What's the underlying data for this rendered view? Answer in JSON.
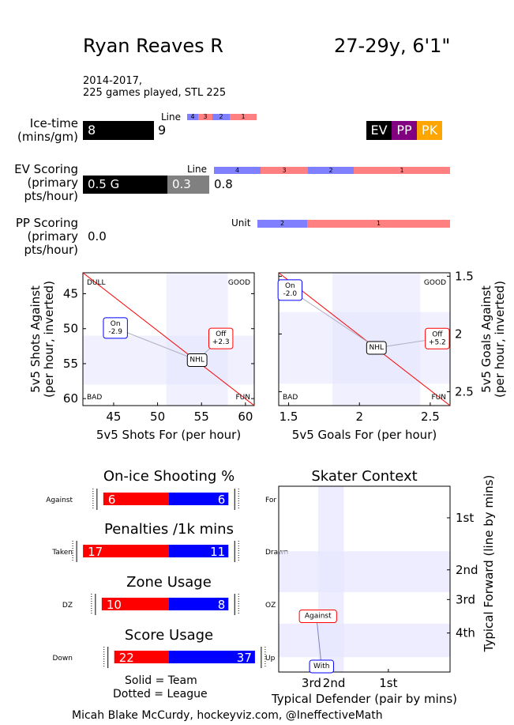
{
  "header": {
    "name": "Ryan Reaves R",
    "age_height": "27-29y, 6'1\"",
    "seasons": "2014-2017,",
    "games": "225 games played, STL 225"
  },
  "colors": {
    "line1": "#ff8080",
    "line2": "#8080ff",
    "line3": "#ff8080",
    "line4": "#8080ff",
    "ev": "#000000",
    "pp": "#800080",
    "pk": "#ffa500",
    "red": "#ff0000",
    "blue": "#0000ff",
    "shade": "#e6e6ff"
  },
  "icetime": {
    "label": [
      "Ice-time",
      "(mins/gm)"
    ],
    "value_bar": "8",
    "value_after": "9",
    "line_title": "Line",
    "line_segments": [
      {
        "label": "4",
        "frac": 0.15,
        "color": "#8080ff"
      },
      {
        "label": "3",
        "frac": 0.35,
        "color": "#ff8080"
      },
      {
        "label": "2",
        "frac": 0.5,
        "color": "#8080ff"
      },
      {
        "label": "1",
        "frac": 0.0,
        "color": "#ff8080"
      }
    ],
    "badges": [
      "EV",
      "PP",
      "PK"
    ]
  },
  "ev_scoring": {
    "label": [
      "EV Scoring",
      "(primary",
      "pts/hour)"
    ],
    "goals_text": "0.5 G",
    "assists_text": "0.3",
    "total_text": "0.8",
    "line_title": "Line",
    "line_segments": [
      {
        "label": "4",
        "frac": 0.197
      },
      {
        "label": "3",
        "frac": 0.397
      },
      {
        "label": "2",
        "frac": 0.592
      },
      {
        "label": "1",
        "frac": 1.0
      }
    ]
  },
  "pp_scoring": {
    "label": [
      "PP Scoring",
      "(primary",
      "pts/hour)"
    ],
    "value": "0.0",
    "unit_title": "Unit",
    "unit_segments": [
      {
        "label": "2",
        "frac": 0.257
      },
      {
        "label": "1",
        "frac": 1.0
      }
    ]
  },
  "chart_data": [
    {
      "type": "scatter",
      "title": "",
      "xlabel": "5v5 Shots For (per hour)",
      "ylabel": "5v5 Shots Against\n(per hour, inverted)",
      "xlim": [
        41.5,
        61
      ],
      "ylim": [
        61,
        42
      ],
      "y_inverted": true,
      "xticks": [
        45,
        50,
        55,
        60
      ],
      "yticks": [
        45,
        50,
        55,
        60
      ],
      "corners": {
        "tl": "DULL",
        "tr": "GOOD",
        "bl": "BAD",
        "br": "FUN"
      },
      "shade_x": [
        51,
        58
      ],
      "shade_y": [
        51,
        58
      ],
      "points": [
        {
          "label": "On\n-2.9",
          "x": 45.2,
          "y": 49.9,
          "color": "blue"
        },
        {
          "label": "Off\n+2.3",
          "x": 57.2,
          "y": 51.4,
          "color": "red"
        },
        {
          "label": "NHL",
          "x": 54.5,
          "y": 54.5,
          "color": "black"
        }
      ]
    },
    {
      "type": "scatter",
      "title": "",
      "xlabel": "5v5 Goals For (per hour)",
      "ylabel": "5v5 Goals Against\n(per hour, inverted)",
      "xlim": [
        1.43,
        2.64
      ],
      "ylim": [
        2.62,
        1.47
      ],
      "y_inverted": true,
      "xticks": [
        1.5,
        2.0,
        2.5
      ],
      "yticks": [
        1.5,
        2.0,
        2.5
      ],
      "corners": {
        "tl": "DULL",
        "tr": "GOOD",
        "bl": "BAD",
        "br": "FUN"
      },
      "shade_x": [
        1.81,
        2.43
      ],
      "shade_y": [
        1.81,
        2.43
      ],
      "points": [
        {
          "label": "On\n-2.0",
          "x": 1.51,
          "y": 1.62,
          "color": "blue"
        },
        {
          "label": "Off\n+5.2",
          "x": 2.55,
          "y": 2.04,
          "color": "red"
        },
        {
          "label": "NHL",
          "x": 2.12,
          "y": 2.12,
          "color": "black"
        }
      ]
    },
    {
      "type": "bar",
      "title": "On-ice Shooting %",
      "left_label": "Against",
      "right_label": "For",
      "left_value": 6,
      "right_value": 6,
      "left_len": 0.42,
      "right_len": 0.38
    },
    {
      "type": "bar",
      "title": "Penalties /1k mins",
      "left_label": "Taken",
      "right_label": "Drawn",
      "left_value": 17,
      "right_value": 11,
      "left_len": 0.55,
      "right_len": 0.38
    },
    {
      "type": "bar",
      "title": "Zone Usage",
      "left_label": "DZ",
      "right_label": "OZ",
      "left_value": 10,
      "right_value": 8,
      "left_len": 0.43,
      "right_len": 0.38
    },
    {
      "type": "bar",
      "title": "Score Usage",
      "left_label": "Down",
      "right_label": "Up",
      "left_value": 22,
      "right_value": 37,
      "left_len": 0.35,
      "right_len": 0.55
    },
    {
      "type": "scatter",
      "title": "Skater Context",
      "xlabel": "Typical Defender (pair by mins)",
      "ylabel": "Typical Forward (line by mins)",
      "xticks": [
        {
          "label": "3rd",
          "pos": 0.2
        },
        {
          "label": "2nd",
          "pos": 0.24
        },
        {
          "label": "1st",
          "pos": 0.64
        }
      ],
      "yticks": [
        {
          "label": "1st",
          "pos": 0.17
        },
        {
          "label": "2nd",
          "pos": 0.45
        },
        {
          "label": "3rd",
          "pos": 0.61
        },
        {
          "label": "4th",
          "pos": 0.79
        }
      ],
      "points": [
        {
          "label": "Against",
          "x": 0.22,
          "y": 0.7,
          "color": "red"
        },
        {
          "label": "With",
          "x": 0.25,
          "y": 0.97,
          "color": "blue"
        }
      ]
    }
  ],
  "legend_note": [
    "Solid = Team",
    "Dotted = League"
  ],
  "footer": "Micah Blake McCurdy, hockeyviz.com, @IneffectiveMath"
}
